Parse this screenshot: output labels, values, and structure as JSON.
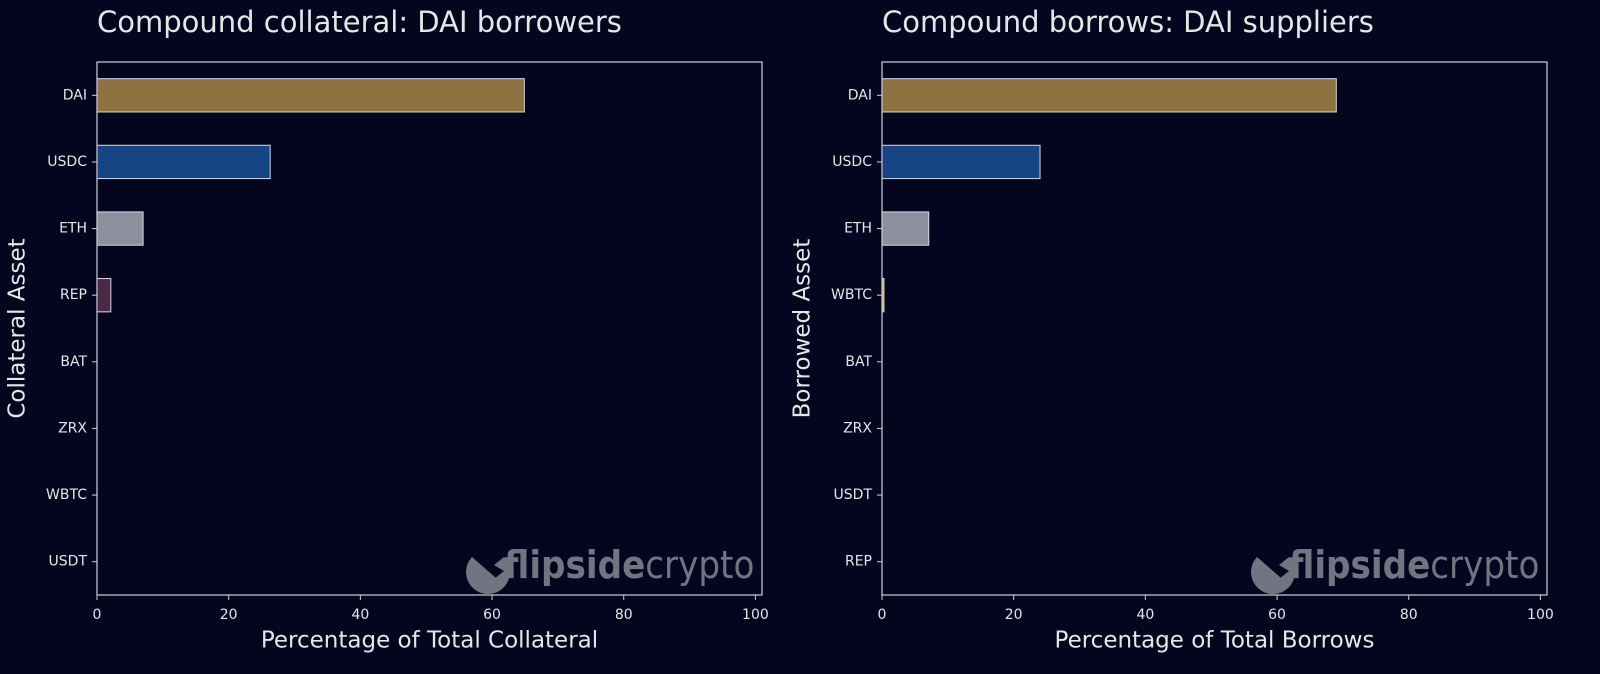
{
  "chart_data": [
    {
      "type": "barh",
      "title": "Compound collateral: DAI borrowers",
      "categories": [
        "DAI",
        "USDC",
        "ETH",
        "REP",
        "BAT",
        "ZRX",
        "WBTC",
        "USDT"
      ],
      "values": [
        64.9,
        26.3,
        7.0,
        2.1,
        0,
        0,
        0,
        0
      ],
      "colors": [
        "#8f7241",
        "#154584",
        "#8e8f9c",
        "#4a2a48",
        "#6b3a2a",
        "#555555",
        "#c9a25a",
        "#2f7f5f"
      ],
      "xlabel": "Percentage of Total Collateral",
      "ylabel": "Collateral Asset",
      "xlim": [
        0,
        101
      ],
      "xticks": [
        0,
        20,
        40,
        60,
        80,
        100
      ],
      "watermark": [
        "flipside",
        "crypto"
      ]
    },
    {
      "type": "barh",
      "title": "Compound borrows: DAI suppliers",
      "categories": [
        "DAI",
        "USDC",
        "ETH",
        "WBTC",
        "BAT",
        "ZRX",
        "USDT",
        "REP"
      ],
      "values": [
        69.0,
        24.0,
        7.1,
        0.3,
        0,
        0,
        0,
        0
      ],
      "colors": [
        "#8f7241",
        "#154584",
        "#8e8f9c",
        "#c9a25a",
        "#6b3a2a",
        "#555555",
        "#2f7f5f",
        "#4a2a48"
      ],
      "xlabel": "Percentage of Total Borrows",
      "ylabel": "Borrowed Asset",
      "xlim": [
        0,
        101
      ],
      "xticks": [
        0,
        20,
        40,
        60,
        80,
        100
      ],
      "watermark": [
        "flipside",
        "crypto"
      ]
    }
  ]
}
